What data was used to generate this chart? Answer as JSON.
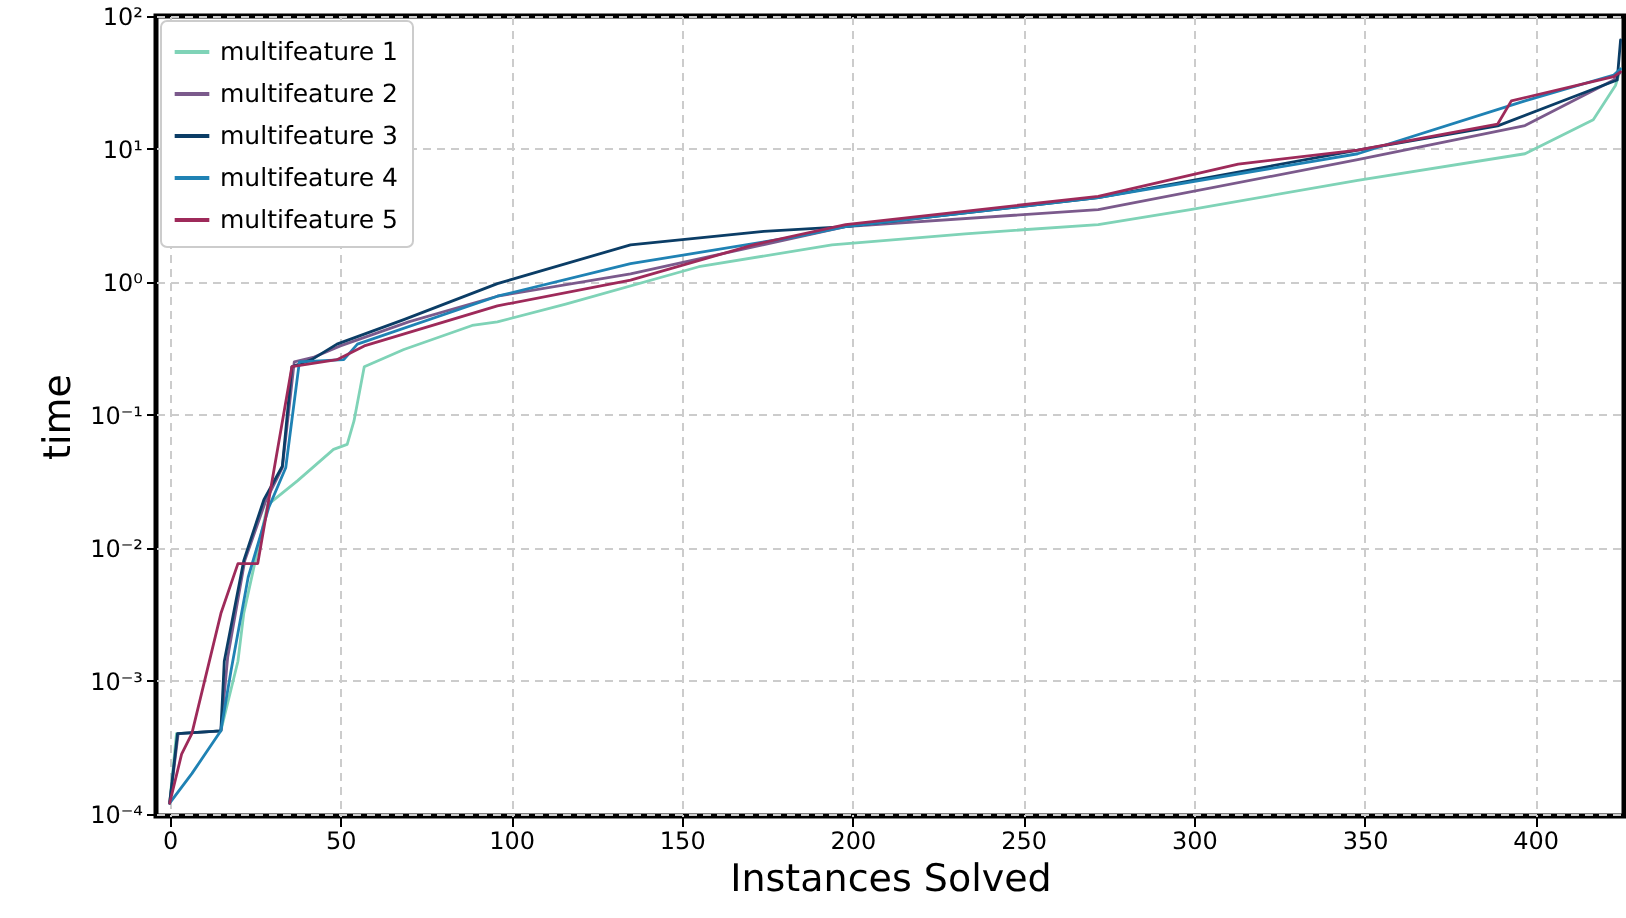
{
  "chart_data": {
    "type": "line",
    "xlabel": "Instances Solved",
    "ylabel": "time",
    "log": "y",
    "grid": true,
    "legend": "top left",
    "xlim": [
      -4,
      426
    ],
    "xticks": [
      0,
      50,
      100,
      150,
      200,
      250,
      300,
      350,
      400
    ],
    "ylim": [
      9.6e-05,
      100
    ],
    "yticks": [
      {
        "value": 0.0001,
        "label": "10⁻⁴"
      },
      {
        "value": 0.001,
        "label": "10⁻³"
      },
      {
        "value": 0.01,
        "label": "10⁻²"
      },
      {
        "value": 0.1,
        "label": "10⁻¹"
      },
      {
        "value": 1,
        "label": "10⁰"
      },
      {
        "value": 10,
        "label": "10¹"
      },
      {
        "value": 100,
        "label": "10²"
      }
    ],
    "series": [
      {
        "name": "multifeature 1",
        "color": "#7fd3b7",
        "x": [
          0,
          2,
          15,
          20,
          21.7,
          24.6,
          28.7,
          37.5,
          48,
          52,
          54,
          57,
          68.6,
          88.6,
          96,
          116,
          155,
          194,
          233,
          272,
          299,
          348,
          397,
          417,
          423.5,
          425
        ],
        "values": [
          0.00012,
          0.0004,
          0.00042,
          0.0014,
          0.0032,
          0.007,
          0.021,
          0.032,
          0.055,
          0.06,
          0.09,
          0.23,
          0.31,
          0.47,
          0.5,
          0.68,
          1.3,
          1.9,
          2.3,
          2.7,
          3.5,
          5.8,
          9.2,
          16.6,
          30,
          40
        ]
      },
      {
        "name": "multifeature 2",
        "color": "#7b5a8c",
        "x": [
          0,
          2.5,
          15,
          17,
          22,
          28,
          33,
          36.5,
          42,
          50,
          70,
          96,
          135,
          198,
          272,
          348,
          397,
          423,
          425
        ],
        "values": [
          0.00012,
          0.0004,
          0.00042,
          0.0015,
          0.008,
          0.022,
          0.04,
          0.25,
          0.27,
          0.33,
          0.5,
          0.78,
          1.15,
          2.6,
          3.5,
          8.3,
          15,
          33,
          38
        ]
      },
      {
        "name": "multifeature 3",
        "color": "#0b3d66",
        "x": [
          0,
          2.3,
          15,
          16,
          21.7,
          27.6,
          33,
          35.8,
          41.6,
          49,
          68.6,
          96,
          135,
          174,
          198,
          272,
          348,
          389,
          424,
          425
        ],
        "values": [
          0.00012,
          0.0004,
          0.00042,
          0.0014,
          0.008,
          0.023,
          0.041,
          0.23,
          0.26,
          0.34,
          0.52,
          0.97,
          1.9,
          2.4,
          2.6,
          4.3,
          9.8,
          14.9,
          33,
          66
        ]
      },
      {
        "name": "multifeature 4",
        "color": "#1f82b4",
        "x": [
          0,
          6.5,
          15,
          18,
          23,
          29,
          34,
          38,
          51,
          55,
          96,
          135,
          184,
          198,
          272,
          348,
          397,
          423,
          425
        ],
        "values": [
          0.00012,
          0.0002,
          0.00042,
          0.0012,
          0.006,
          0.02,
          0.04,
          0.25,
          0.26,
          0.34,
          0.78,
          1.37,
          2.2,
          2.6,
          4.3,
          9.2,
          23,
          36,
          40
        ]
      },
      {
        "name": "multifeature 5",
        "color": "#9e2a5a",
        "x": [
          0,
          3.5,
          6.5,
          15,
          20,
          25.8,
          35.8,
          49,
          57,
          96,
          135,
          171,
          198,
          272,
          313,
          348,
          389,
          393,
          423,
          425
        ],
        "values": [
          0.00012,
          0.00028,
          0.0004,
          0.0032,
          0.0076,
          0.0076,
          0.23,
          0.26,
          0.33,
          0.66,
          1.03,
          1.9,
          2.7,
          4.4,
          7.7,
          9.8,
          15.4,
          23,
          35,
          38
        ]
      }
    ]
  }
}
